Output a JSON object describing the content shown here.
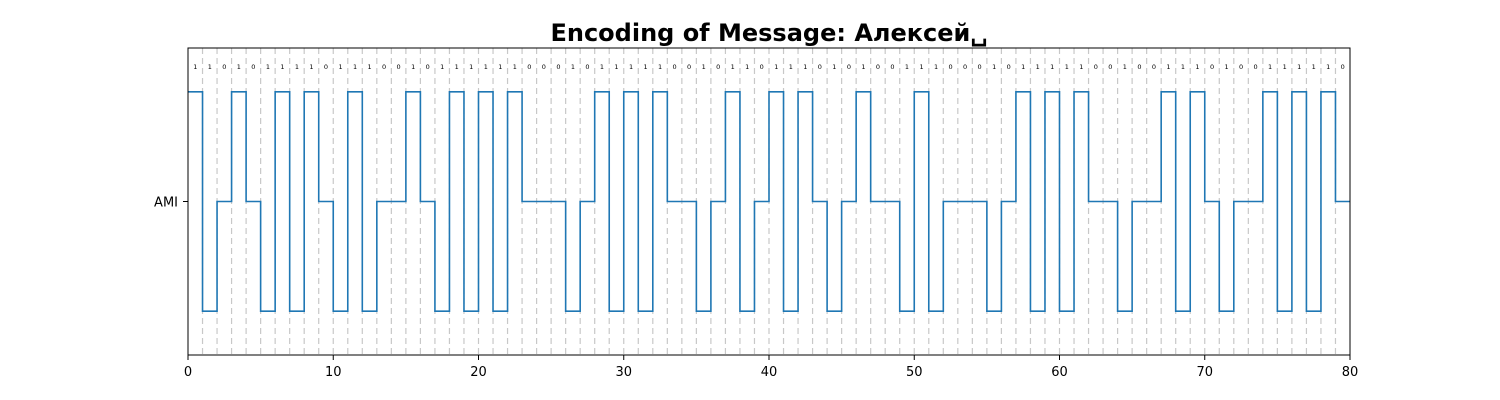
{
  "chart_data": {
    "type": "line",
    "title": "Encoding of Message: Алексей␣",
    "xlabel": "",
    "ylabel": "",
    "y_tick_labels": [
      "AMI"
    ],
    "x_ticks": [
      0,
      10,
      20,
      30,
      40,
      50,
      60,
      70,
      80
    ],
    "xlim": [
      0,
      80
    ],
    "ylim": [
      -1.4,
      1.4
    ],
    "grid": "vertical dashed lines at every bit boundary",
    "line_color": "#1f77b4",
    "grid_color": "#c8c8c8",
    "bits": [
      1,
      1,
      0,
      1,
      0,
      1,
      1,
      1,
      1,
      0,
      1,
      1,
      1,
      0,
      0,
      1,
      0,
      1,
      1,
      1,
      1,
      1,
      1,
      0,
      0,
      0,
      1,
      0,
      1,
      1,
      1,
      1,
      1,
      0,
      0,
      1,
      0,
      1,
      1,
      0,
      1,
      1,
      1,
      0,
      1,
      0,
      1,
      0,
      0,
      1,
      1,
      1,
      0,
      0,
      0,
      1,
      0,
      1,
      1,
      1,
      1,
      1,
      0,
      0,
      1,
      0,
      0,
      1,
      1,
      1,
      0,
      1,
      0,
      0,
      1,
      1,
      1,
      1,
      1,
      0
    ],
    "series": [
      {
        "values": [
          1,
          -1,
          0,
          1,
          0,
          -1,
          1,
          -1,
          1,
          0,
          -1,
          1,
          -1,
          0,
          0,
          1,
          0,
          -1,
          1,
          -1,
          1,
          -1,
          1,
          0,
          0,
          0,
          -1,
          0,
          1,
          -1,
          1,
          -1,
          1,
          0,
          0,
          -1,
          0,
          1,
          -1,
          0,
          1,
          -1,
          1,
          0,
          -1,
          0,
          1,
          0,
          0,
          -1,
          1,
          -1,
          0,
          0,
          0,
          -1,
          0,
          1,
          -1,
          1,
          -1,
          1,
          0,
          0,
          -1,
          0,
          0,
          1,
          -1,
          1,
          0,
          -1,
          0,
          0,
          1,
          -1,
          1,
          -1,
          1,
          0
        ]
      }
    ]
  }
}
